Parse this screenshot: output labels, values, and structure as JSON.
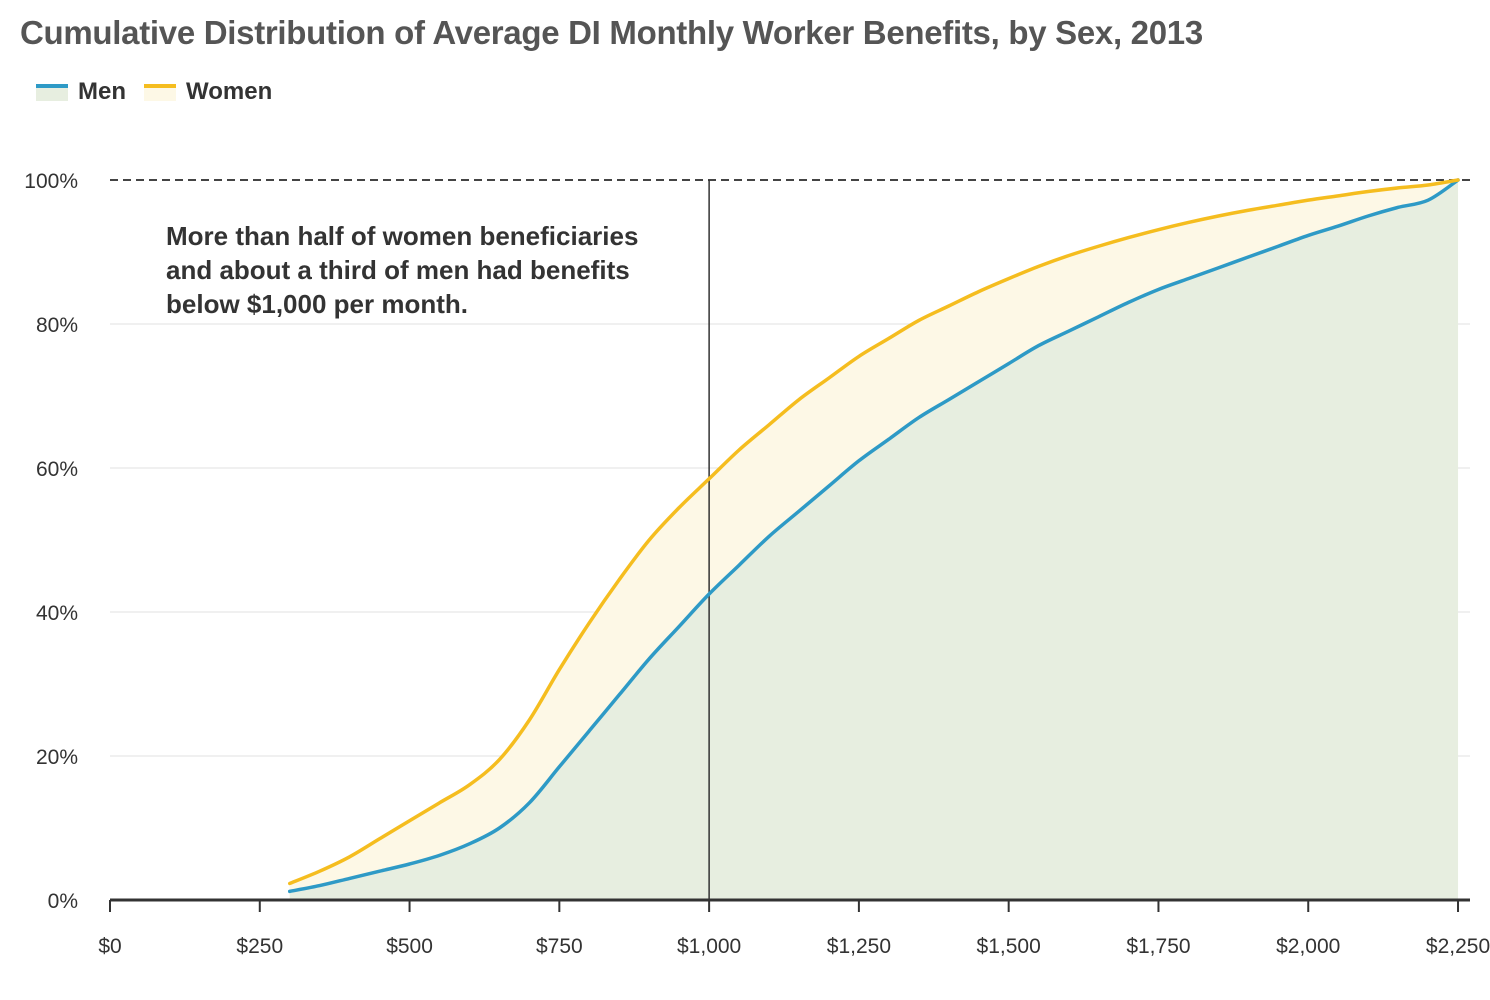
{
  "chart_data": {
    "type": "area",
    "title": "Cumulative Distribution of Average DI Monthly Worker Benefits, by Sex, 2013",
    "xlabel": "",
    "ylabel": "",
    "xlim": [
      0,
      2270
    ],
    "ylim": [
      0,
      100
    ],
    "x_ticks": [
      0,
      250,
      500,
      750,
      1000,
      1250,
      1500,
      1750,
      2000,
      2250
    ],
    "x_tick_labels": [
      "$0",
      "$250",
      "$500",
      "$750",
      "$1,000",
      "$1,250",
      "$1,500",
      "$1,750",
      "$2,000",
      "$2,250"
    ],
    "y_ticks": [
      0,
      20,
      40,
      60,
      80,
      100
    ],
    "y_tick_labels": [
      "0%",
      "20%",
      "40%",
      "60%",
      "80%",
      "100%"
    ],
    "grid": true,
    "legend_position": "top-left",
    "reference_line_x": 1000,
    "reference_line_y": 100,
    "series": [
      {
        "name": "Men",
        "color": "#2e9ac6",
        "fill": "#e7eee0",
        "x": [
          300,
          350,
          400,
          450,
          500,
          550,
          600,
          650,
          700,
          750,
          800,
          850,
          900,
          950,
          1000,
          1050,
          1100,
          1150,
          1200,
          1250,
          1300,
          1350,
          1400,
          1450,
          1500,
          1550,
          1600,
          1650,
          1700,
          1750,
          1800,
          1850,
          1900,
          1950,
          2000,
          2050,
          2100,
          2150,
          2200,
          2250
        ],
        "values": [
          1.2,
          2.0,
          3.0,
          4.0,
          5.0,
          6.2,
          7.8,
          10.0,
          13.5,
          18.5,
          23.5,
          28.5,
          33.5,
          38.0,
          42.5,
          46.5,
          50.5,
          54.0,
          57.5,
          61.0,
          64.0,
          67.0,
          69.5,
          72.0,
          74.5,
          77.0,
          79.0,
          81.0,
          83.0,
          84.8,
          86.3,
          87.8,
          89.3,
          90.8,
          92.3,
          93.6,
          95.0,
          96.2,
          97.2,
          100
        ]
      },
      {
        "name": "Women",
        "color": "#f5bd1f",
        "fill": "#fdf8e6",
        "x": [
          300,
          350,
          400,
          450,
          500,
          550,
          600,
          650,
          700,
          750,
          800,
          850,
          900,
          950,
          1000,
          1050,
          1100,
          1150,
          1200,
          1250,
          1300,
          1350,
          1400,
          1450,
          1500,
          1550,
          1600,
          1650,
          1700,
          1750,
          1800,
          1850,
          1900,
          1950,
          2000,
          2050,
          2100,
          2150,
          2200,
          2250
        ],
        "values": [
          2.3,
          4.0,
          6.0,
          8.5,
          11.0,
          13.5,
          16.0,
          19.5,
          25.0,
          32.0,
          38.5,
          44.5,
          50.0,
          54.5,
          58.5,
          62.5,
          66.0,
          69.5,
          72.5,
          75.5,
          78.0,
          80.5,
          82.5,
          84.5,
          86.3,
          88.0,
          89.5,
          90.8,
          92.0,
          93.1,
          94.1,
          95.0,
          95.8,
          96.5,
          97.2,
          97.8,
          98.4,
          98.9,
          99.3,
          100
        ]
      }
    ],
    "annotations": [
      {
        "lines": [
          "More than half of women beneficiaries",
          "and about a third of men had benefits",
          "below $1,000 per month."
        ]
      }
    ]
  }
}
